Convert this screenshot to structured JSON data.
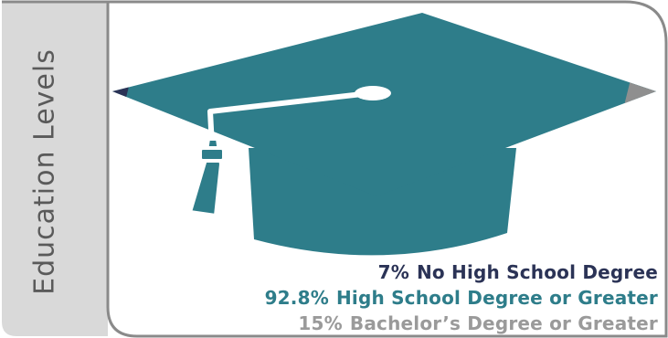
{
  "side_title": "Education Levels",
  "colors": {
    "cap_teal": "#2e7d8a",
    "navy": "#2b3356",
    "gray": "#8f8f8f",
    "panel_gray": "#d9d9d9",
    "border_gray": "#8a8a8a"
  },
  "chart_data": {
    "type": "bar",
    "title": "Education Levels",
    "series": [
      {
        "name": "No High School Degree",
        "percent": 7,
        "label": "7%",
        "color": "#2b3356"
      },
      {
        "name": "High School Degree or Greater",
        "percent": 92.8,
        "label": "92.8%",
        "color": "#2e7d8a"
      },
      {
        "name": "Bachelor’s Degree or Greater",
        "percent": 15,
        "label": "15%",
        "color": "#8f8f8f"
      }
    ]
  }
}
